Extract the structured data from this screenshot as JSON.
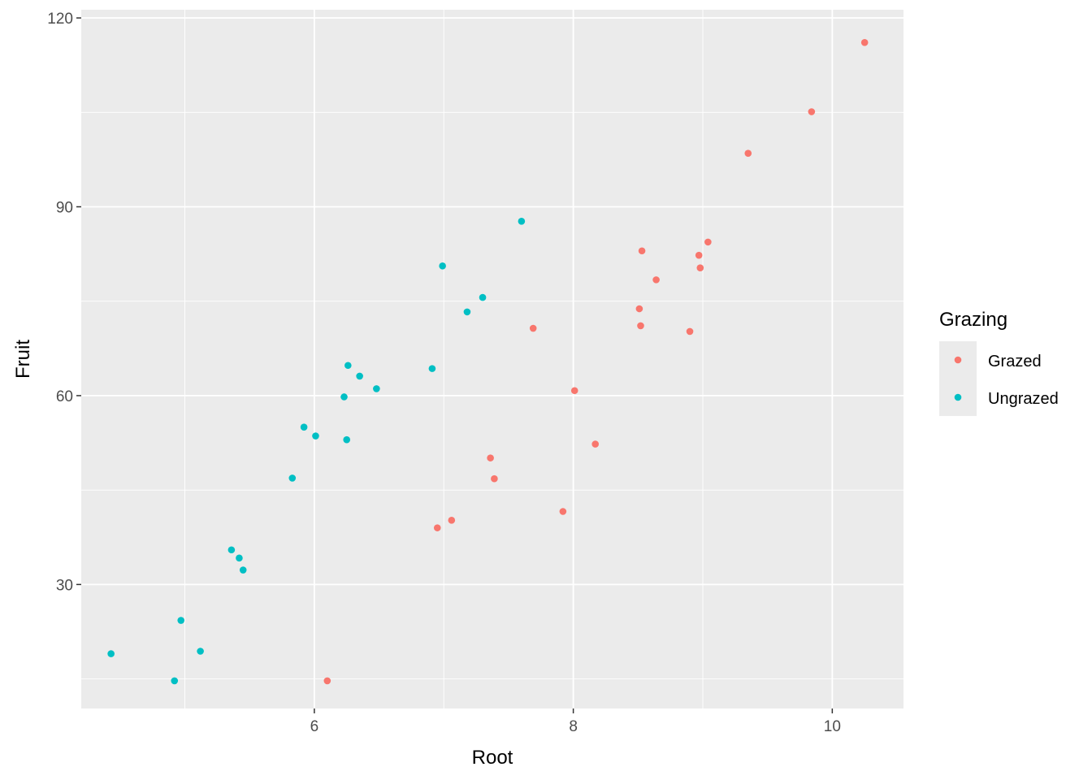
{
  "chart_data": {
    "type": "scatter",
    "xlabel": "Root",
    "ylabel": "Fruit",
    "xlim": [
      4.2,
      10.55
    ],
    "ylim": [
      10.3,
      121.3
    ],
    "x_ticks": [
      6,
      8,
      10
    ],
    "y_ticks": [
      30,
      60,
      90,
      120
    ],
    "grid": true,
    "legend": {
      "title": "Grazing",
      "position": "right"
    },
    "series": [
      {
        "name": "Grazed",
        "color": "#F8766D",
        "points": [
          [
            6.1,
            14.7
          ],
          [
            6.95,
            39.0
          ],
          [
            7.06,
            40.2
          ],
          [
            7.36,
            50.1
          ],
          [
            7.39,
            46.8
          ],
          [
            7.69,
            70.7
          ],
          [
            7.92,
            41.6
          ],
          [
            8.01,
            60.8
          ],
          [
            8.17,
            52.3
          ],
          [
            8.51,
            73.8
          ],
          [
            8.52,
            71.1
          ],
          [
            8.53,
            83.0
          ],
          [
            8.64,
            78.4
          ],
          [
            8.9,
            70.2
          ],
          [
            8.97,
            82.3
          ],
          [
            8.98,
            80.3
          ],
          [
            9.04,
            84.4
          ],
          [
            9.35,
            98.5
          ],
          [
            9.84,
            105.1
          ],
          [
            10.25,
            116.1
          ]
        ]
      },
      {
        "name": "Ungrazed",
        "color": "#00BFC4",
        "points": [
          [
            4.43,
            19.0
          ],
          [
            4.92,
            14.7
          ],
          [
            4.97,
            24.3
          ],
          [
            5.12,
            19.4
          ],
          [
            5.36,
            35.5
          ],
          [
            5.42,
            34.2
          ],
          [
            5.45,
            32.3
          ],
          [
            5.83,
            46.9
          ],
          [
            5.92,
            55.0
          ],
          [
            6.01,
            53.6
          ],
          [
            6.23,
            59.8
          ],
          [
            6.25,
            53.0
          ],
          [
            6.26,
            64.8
          ],
          [
            6.35,
            63.1
          ],
          [
            6.48,
            61.1
          ],
          [
            6.91,
            64.3
          ],
          [
            6.99,
            80.6
          ],
          [
            7.18,
            73.3
          ],
          [
            7.3,
            75.6
          ],
          [
            7.6,
            87.7
          ]
        ]
      }
    ]
  }
}
